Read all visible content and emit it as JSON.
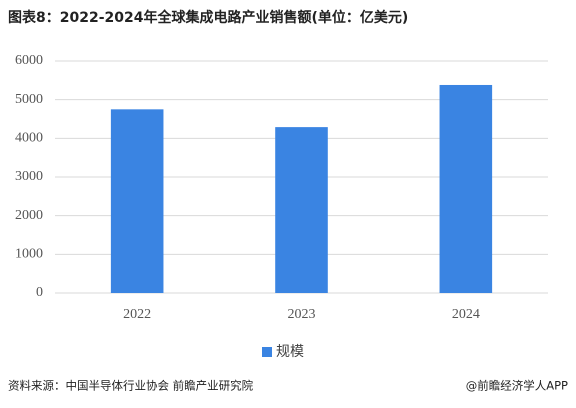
{
  "chart_data": {
    "type": "bar",
    "title": "图表8：2022-2024年全球集成电路产业销售额(单位：亿美元)",
    "categories": [
      "2022",
      "2023",
      "2024"
    ],
    "series": [
      {
        "name": "规模",
        "color": "#3a84e2",
        "values": [
          4750,
          4290,
          5380
        ]
      }
    ],
    "ylim": [
      0,
      6000
    ],
    "yticks": [
      0,
      1000,
      2000,
      3000,
      4000,
      5000,
      6000
    ],
    "grid": true,
    "legend": "bottom",
    "source": "资料来源：中国半导体行业协会 前瞻产业研究院",
    "credit": "@前瞻经济学人APP"
  }
}
